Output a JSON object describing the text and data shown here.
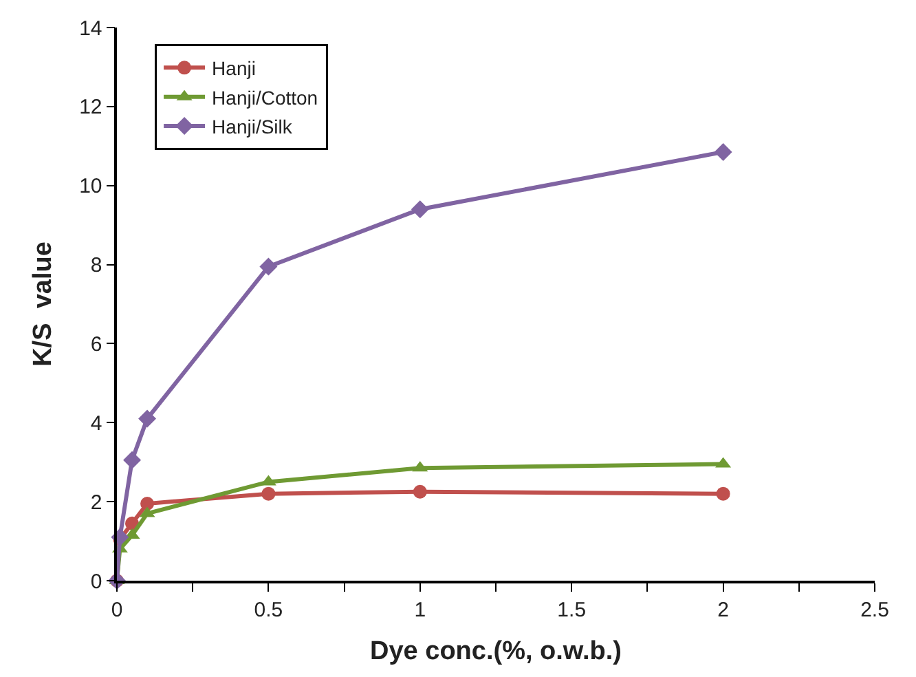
{
  "chart_data": {
    "type": "line",
    "xlabel": "Dye conc.(%, o.w.b.)",
    "ylabel": "K/S  value",
    "x": [
      0,
      0.01,
      0.05,
      0.1,
      0.5,
      1,
      2
    ],
    "series": [
      {
        "name": "Hanji",
        "color": "#c0504d",
        "marker": "circle",
        "values": [
          0,
          1.05,
          1.45,
          1.95,
          2.2,
          2.25,
          2.2
        ]
      },
      {
        "name": "Hanji/Cotton",
        "color": "#6f9a33",
        "marker": "triangle",
        "values": [
          0,
          0.8,
          1.15,
          1.7,
          2.5,
          2.85,
          2.95
        ]
      },
      {
        "name": "Hanji/Silk",
        "color": "#8064a2",
        "marker": "diamond",
        "values": [
          0,
          1.1,
          3.05,
          4.1,
          7.95,
          9.4,
          10.85
        ]
      }
    ],
    "xlim": [
      0,
      2.5
    ],
    "xticks": [
      0,
      {
        "value": 0.25,
        "label": null
      },
      0.5,
      {
        "value": 0.75,
        "label": null
      },
      1,
      {
        "value": 1.25,
        "label": null
      },
      1.5,
      {
        "value": 1.75,
        "label": null
      },
      2,
      {
        "value": 2.25,
        "label": null
      },
      2.5
    ],
    "ylim": [
      0,
      14
    ],
    "yticks": [
      0,
      2,
      4,
      6,
      8,
      10,
      12,
      14
    ],
    "legend": "top left",
    "line_style": "solid"
  }
}
